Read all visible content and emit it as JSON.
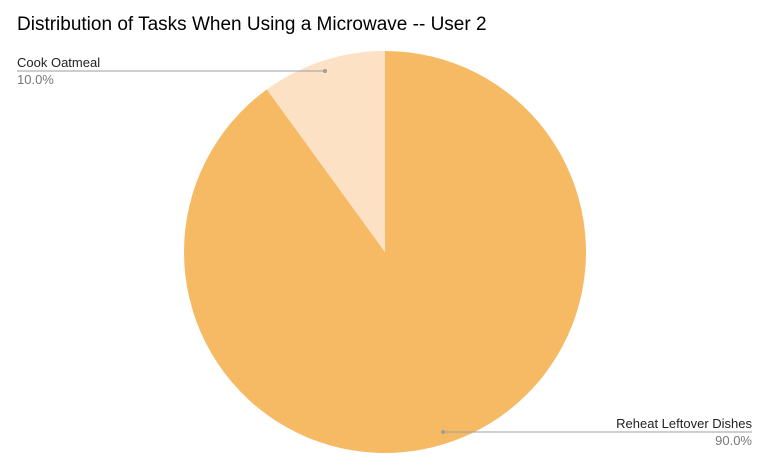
{
  "chart_data": {
    "type": "pie",
    "title": "Distribution of Tasks When Using a Microwave -- User 2",
    "slices": [
      {
        "label": "Reheat Leftover Dishes",
        "value": 90.0,
        "percent_label": "90.0%",
        "color": "#F6BA65"
      },
      {
        "label": "Cook Oatmeal",
        "value": 10.0,
        "percent_label": "10.0%",
        "color": "#FCE1C5"
      }
    ],
    "legend": "labels-with-leader-lines",
    "start_angle_deg": 0,
    "direction": "clockwise"
  }
}
